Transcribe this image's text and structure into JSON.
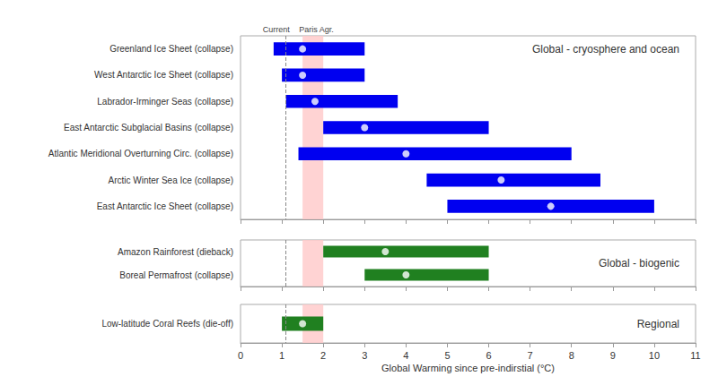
{
  "chart_data": {
    "type": "bar",
    "orientation": "horizontal",
    "xlabel": "Global Warming since pre-indirstial (°C)",
    "xlim": [
      0,
      11
    ],
    "xticks": [
      0,
      1,
      2,
      3,
      4,
      5,
      6,
      7,
      8,
      9,
      10,
      11
    ],
    "annotations": [
      {
        "text": "Current",
        "x": 1.1,
        "line_style": "dashed",
        "color": "#888888"
      },
      {
        "text": "Paris Agr.",
        "x": [
          1.5,
          2
        ],
        "color": "#ffc8c8"
      }
    ],
    "panels": [
      {
        "title": "Global - cryosphere and ocean",
        "color": "#0000f0",
        "categories": [
          "Greenland Ice Sheet (collapse)",
          "West Antarctic Ice Sheet (collapse)",
          "Labrador-Irminger Seas (collapse)",
          "East Antarctic Subglacial Basins (collapse)",
          "Atlantic Meridional Overturning Circ. (collapse)",
          "Arctic Winter Sea Ice (collapse)",
          "East Antarctic Ice Sheet (collapse)"
        ],
        "low": [
          0.8,
          1.0,
          1.1,
          2.0,
          1.4,
          4.5,
          5.0
        ],
        "high": [
          3.0,
          3.0,
          3.8,
          6.0,
          8.0,
          8.7,
          10.0
        ],
        "mid": [
          1.5,
          1.5,
          1.8,
          3.0,
          4.0,
          6.3,
          7.5
        ]
      },
      {
        "title": "Global - biogenic",
        "color": "#208020",
        "categories": [
          "Amazon Rainforest (dieback)",
          "Boreal Permafrost (collapse)"
        ],
        "low": [
          2.0,
          3.0
        ],
        "high": [
          6.0,
          6.0
        ],
        "mid": [
          3.5,
          4.0
        ]
      },
      {
        "title": "Regional",
        "color": "#208020",
        "categories": [
          "Low-latitude Coral Reefs (die-off)"
        ],
        "low": [
          1.0
        ],
        "high": [
          2.0
        ],
        "mid": [
          1.5
        ]
      }
    ]
  }
}
